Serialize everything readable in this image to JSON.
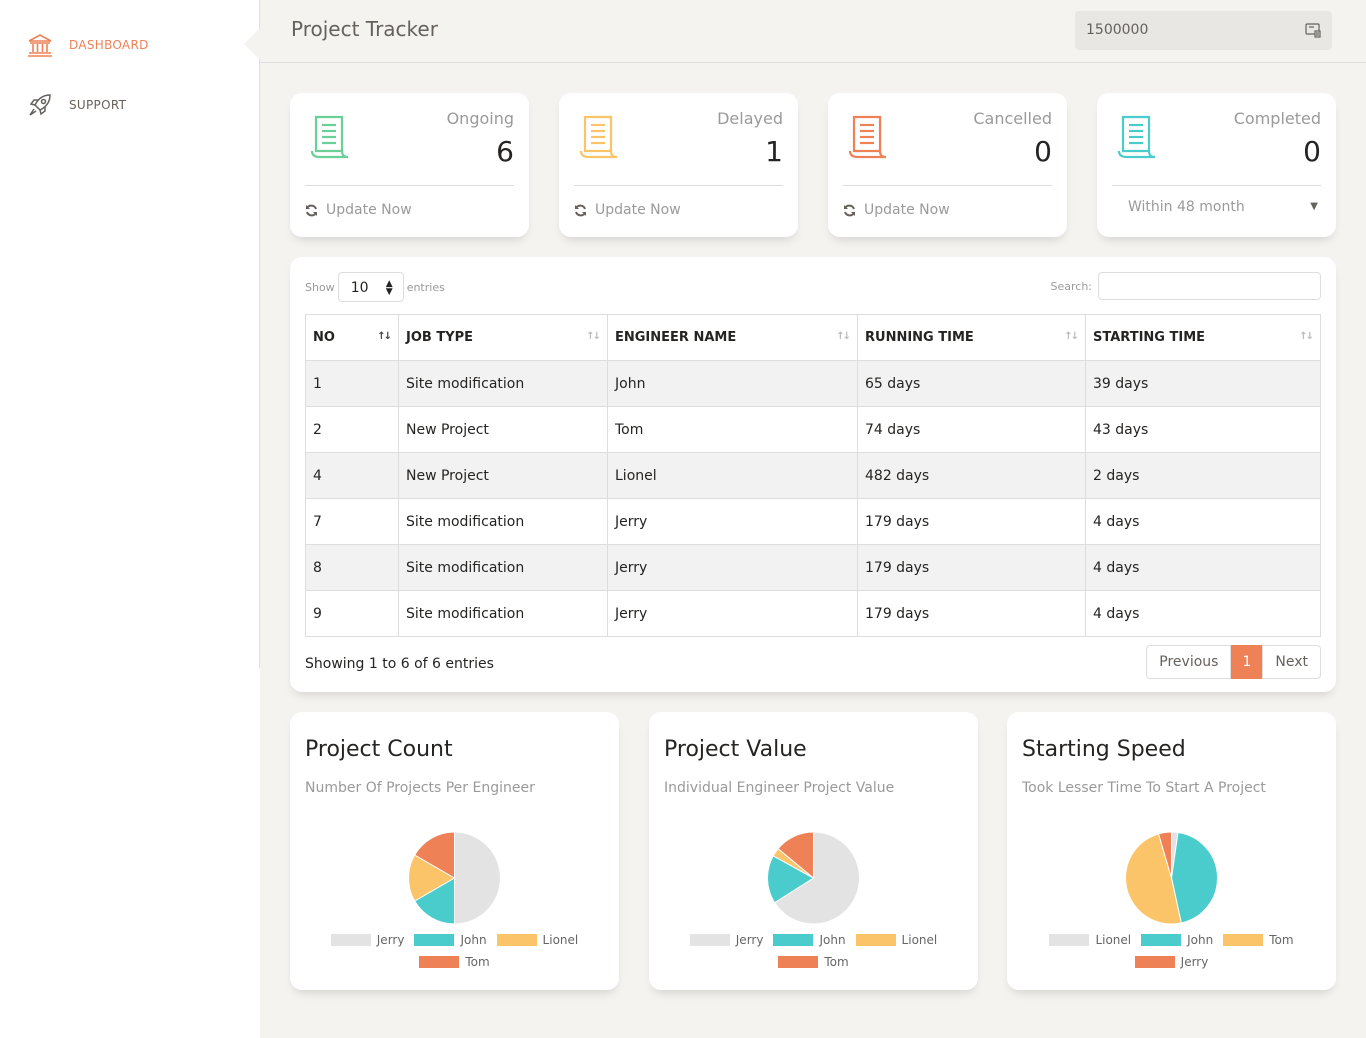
{
  "sidebar": {
    "items": [
      {
        "label": "DASHBOARD",
        "icon": "bank-icon"
      },
      {
        "label": "SUPPORT",
        "icon": "rocket-icon"
      }
    ]
  },
  "header": {
    "title": "Project Tracker",
    "search_value": "1500000"
  },
  "colors": {
    "accent": "#ef8157",
    "gray": "#e3e3e3",
    "teal": "#4acccd",
    "yellow": "#fcc468",
    "orange": "#ef8157",
    "green": "#6bd098"
  },
  "stats": [
    {
      "label": "Ongoing",
      "value": "6",
      "footer": "Update Now"
    },
    {
      "label": "Delayed",
      "value": "1",
      "footer": "Update Now"
    },
    {
      "label": "Cancelled",
      "value": "0",
      "footer": "Update Now"
    },
    {
      "label": "Completed",
      "value": "0",
      "footer": "Within 48 month"
    }
  ],
  "table": {
    "show_label": "Show",
    "entries_label": "entries",
    "length_value": "10",
    "search_label": "Search:",
    "columns": [
      "NO",
      "JOB TYPE",
      "ENGINEER NAME",
      "RUNNING TIME",
      "STARTING TIME"
    ],
    "rows": [
      [
        "1",
        "Site modification",
        "John",
        "65 days",
        "39 days"
      ],
      [
        "2",
        "New Project",
        "Tom",
        "74 days",
        "43 days"
      ],
      [
        "4",
        "New Project",
        "Lionel",
        "482 days",
        "2 days"
      ],
      [
        "7",
        "Site modification",
        "Jerry",
        "179 days",
        "4 days"
      ],
      [
        "8",
        "Site modification",
        "Jerry",
        "179 days",
        "4 days"
      ],
      [
        "9",
        "Site modification",
        "Jerry",
        "179 days",
        "4 days"
      ]
    ],
    "info": "Showing 1 to 6 of 6 entries",
    "prev": "Previous",
    "page": "1",
    "next": "Next"
  },
  "chart_data": [
    {
      "type": "pie",
      "title": "Project Count",
      "subtitle": "Number Of Projects Per Engineer",
      "categories": [
        "Jerry",
        "John",
        "Lionel",
        "Tom"
      ],
      "values": [
        3,
        1,
        1,
        1
      ],
      "colors": [
        "#e3e3e3",
        "#4acccd",
        "#fcc468",
        "#ef8157"
      ],
      "legend_rows": [
        [
          0,
          1,
          2
        ],
        [
          3
        ]
      ]
    },
    {
      "type": "pie",
      "title": "Project Value",
      "subtitle": "Individual Engineer Project Value",
      "categories": [
        "Jerry",
        "John",
        "Lionel",
        "Tom"
      ],
      "values": [
        66,
        17,
        3,
        14
      ],
      "colors": [
        "#e3e3e3",
        "#4acccd",
        "#fcc468",
        "#ef8157"
      ],
      "legend_rows": [
        [
          0,
          1,
          2
        ],
        [
          3
        ]
      ]
    },
    {
      "type": "pie",
      "title": "Starting Speed",
      "subtitle": "Took Lesser Time To Start A Project",
      "categories": [
        "Lionel",
        "John",
        "Tom",
        "Jerry"
      ],
      "values": [
        2,
        39,
        43,
        4
      ],
      "colors": [
        "#e3e3e3",
        "#4acccd",
        "#fcc468",
        "#ef8157"
      ],
      "legend_rows": [
        [
          0,
          1,
          2
        ],
        [
          3
        ]
      ]
    }
  ]
}
